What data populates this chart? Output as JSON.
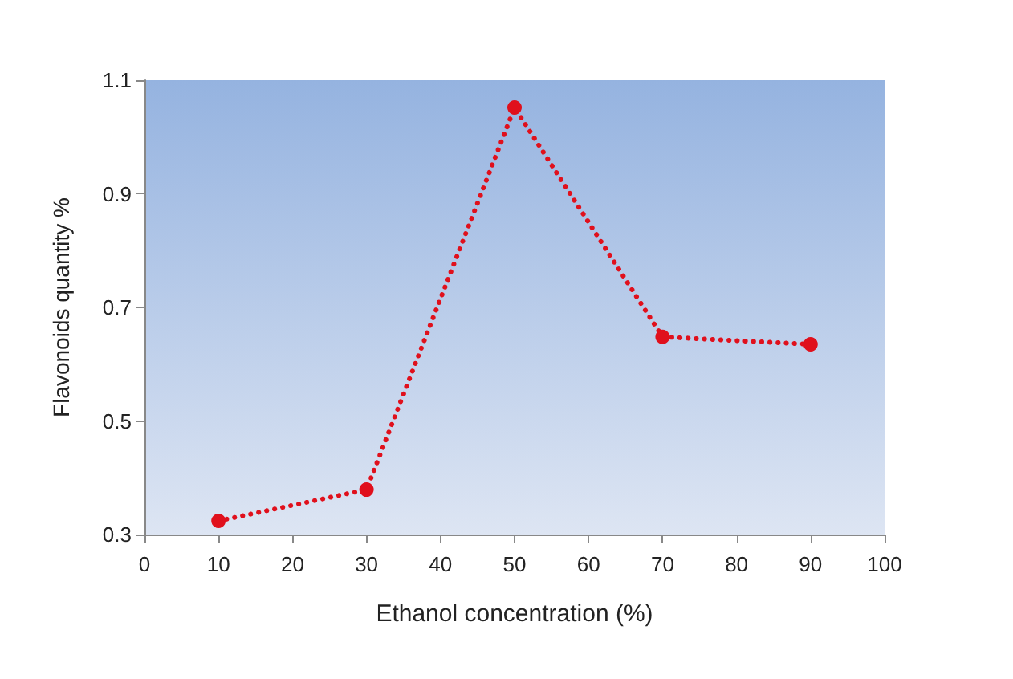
{
  "chart_data": {
    "type": "line",
    "xlabel": "Ethanol concentration (%)",
    "ylabel": "Flavonoids quantity %",
    "x": [
      10,
      30,
      50,
      70,
      90
    ],
    "series": [
      {
        "color": "#e0101c",
        "values": [
          0.324,
          0.379,
          1.052,
          0.648,
          0.635
        ]
      }
    ],
    "xlim": [
      0,
      100
    ],
    "xticks": [
      0,
      10,
      20,
      30,
      40,
      50,
      60,
      70,
      80,
      90,
      100
    ],
    "ylim": [
      0.3,
      1.1
    ],
    "yticks": [
      0.3,
      0.5,
      0.7,
      0.9,
      1.1
    ],
    "grid": false,
    "marker": "circle",
    "line_style": "dotted"
  }
}
